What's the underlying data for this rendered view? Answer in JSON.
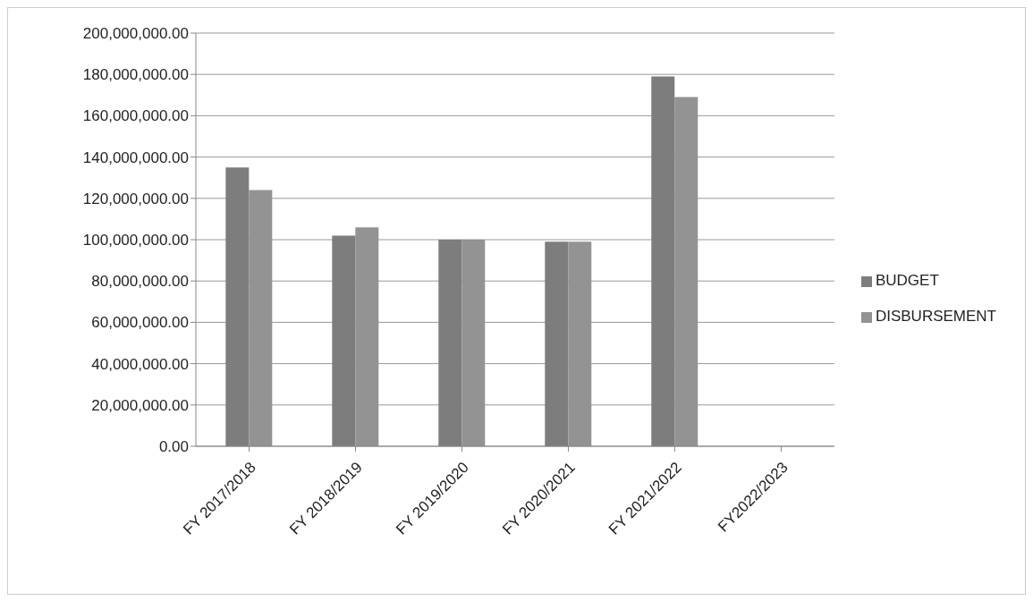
{
  "chart_data": {
    "type": "bar",
    "categories": [
      "FY 2017/2018",
      "FY 2018/2019",
      "FY 2019/2020",
      "FY 2020/2021",
      "FY 2021/2022",
      "FY2022/2023"
    ],
    "series": [
      {
        "name": "BUDGET",
        "color": "#7d7d7d",
        "values": [
          135000000,
          102000000,
          100000000,
          99000000,
          179000000,
          null
        ]
      },
      {
        "name": "DISBURSEMENT",
        "color": "#939393",
        "values": [
          124000000,
          106000000,
          100000000,
          99000000,
          169000000,
          null
        ]
      }
    ],
    "ylim": [
      0,
      200000000
    ],
    "yticks": [
      {
        "value": 0,
        "label": "0.00"
      },
      {
        "value": 20000000,
        "label": "20,000,000.00"
      },
      {
        "value": 40000000,
        "label": "40,000,000.00"
      },
      {
        "value": 60000000,
        "label": "60,000,000.00"
      },
      {
        "value": 80000000,
        "label": "80,000,000.00"
      },
      {
        "value": 100000000,
        "label": "100,000,000.00"
      },
      {
        "value": 120000000,
        "label": "120,000,000.00"
      },
      {
        "value": 140000000,
        "label": "140,000,000.00"
      },
      {
        "value": 160000000,
        "label": "160,000,000.00"
      },
      {
        "value": 180000000,
        "label": "180,000,000.00"
      },
      {
        "value": 200000000,
        "label": "200,000,000.00"
      }
    ],
    "grid": "y",
    "legend": "right"
  }
}
